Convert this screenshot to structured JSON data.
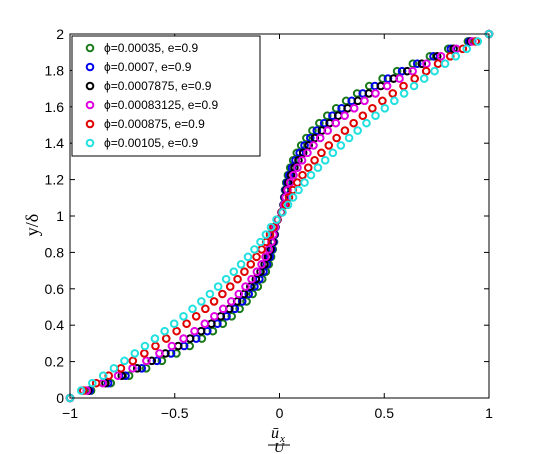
{
  "chart_data": {
    "type": "scatter",
    "title": "",
    "xlabel_numerator": "ū",
    "xlabel_subscript": "x",
    "xlabel_denominator": "U",
    "ylabel": "y/δ",
    "xlim": [
      -1,
      1
    ],
    "ylim": [
      0,
      2
    ],
    "xticks": [
      "−1",
      "−0.5",
      "0",
      "0.5",
      "1"
    ],
    "yticks": [
      "0",
      "0.2",
      "0.4",
      "0.6",
      "0.8",
      "1",
      "1.2",
      "1.4",
      "1.6",
      "1.8",
      "2"
    ],
    "grid": false,
    "legend_position": "top-left",
    "marker": "open-circle",
    "y_points": 50,
    "series": [
      {
        "name": "ϕ=0.00035, e=0.9",
        "color": "#1a7a1a",
        "profile": 0.0
      },
      {
        "name": "ϕ=0.0007, e=0.9",
        "color": "#0000ee",
        "profile": 0.15
      },
      {
        "name": "ϕ=0.0007875, e=0.9",
        "color": "#000000",
        "profile": 0.3
      },
      {
        "name": "ϕ=0.00083125, e=0.9",
        "color": "#e000e0",
        "profile": 0.45
      },
      {
        "name": "ϕ=0.000875, e=0.9",
        "color": "#e00000",
        "profile": 0.8
      },
      {
        "name": "ϕ=0.00105, e=0.9",
        "color": "#22e0e0",
        "profile": 1.0
      }
    ]
  }
}
